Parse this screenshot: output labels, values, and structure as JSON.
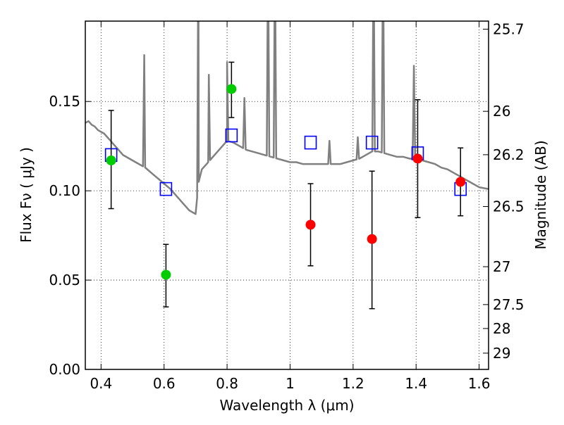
{
  "chart_data": {
    "type": "scatter",
    "xlabel": "Wavelength  λ (μm)",
    "ylabel": "Flux  Fν  ( μJy )",
    "y2label": "Magnitude (AB)",
    "xlim": [
      0.35,
      1.63
    ],
    "ylim": [
      0.0,
      0.195
    ],
    "grid": true,
    "x_ticks": [
      0.4,
      0.6,
      0.8,
      1.0,
      1.2,
      1.4,
      1.6
    ],
    "x_tick_labels": [
      "0.4",
      "0.6",
      "0.8",
      "1",
      "1.2",
      "1.4",
      "1.6"
    ],
    "y_ticks": [
      0.0,
      0.05,
      0.1,
      0.15
    ],
    "y_tick_labels": [
      "0.00",
      "0.05",
      "0.10",
      "0.15"
    ],
    "mag_ticks": [
      {
        "label": "25.7",
        "flux": 0.1905
      },
      {
        "label": "26",
        "flux": 0.1445
      },
      {
        "label": "26.2",
        "flux": 0.1202
      },
      {
        "label": "26.5",
        "flux": 0.0912
      },
      {
        "label": "27",
        "flux": 0.0575
      },
      {
        "label": "27.5",
        "flux": 0.0363
      },
      {
        "label": "28",
        "flux": 0.0229
      },
      {
        "label": "29",
        "flux": 0.0091
      }
    ],
    "model_spectrum": {
      "color": "#808080",
      "points": [
        [
          0.35,
          0.138
        ],
        [
          0.36,
          0.139
        ],
        [
          0.37,
          0.137
        ],
        [
          0.38,
          0.136
        ],
        [
          0.39,
          0.134
        ],
        [
          0.4,
          0.133
        ],
        [
          0.41,
          0.132
        ],
        [
          0.42,
          0.13
        ],
        [
          0.43,
          0.128
        ],
        [
          0.44,
          0.126
        ],
        [
          0.45,
          0.124
        ],
        [
          0.46,
          0.122
        ],
        [
          0.47,
          0.12
        ],
        [
          0.48,
          0.119
        ],
        [
          0.49,
          0.118
        ],
        [
          0.5,
          0.117
        ],
        [
          0.52,
          0.115
        ],
        [
          0.54,
          0.113
        ],
        [
          0.56,
          0.11
        ],
        [
          0.58,
          0.107
        ],
        [
          0.6,
          0.104
        ],
        [
          0.62,
          0.101
        ],
        [
          0.64,
          0.097
        ],
        [
          0.66,
          0.093
        ],
        [
          0.68,
          0.089
        ],
        [
          0.7,
          0.087
        ],
        [
          0.71,
          0.105
        ],
        [
          0.72,
          0.112
        ],
        [
          0.74,
          0.116
        ],
        [
          0.76,
          0.12
        ],
        [
          0.78,
          0.124
        ],
        [
          0.8,
          0.128
        ],
        [
          0.82,
          0.127
        ],
        [
          0.84,
          0.125
        ],
        [
          0.86,
          0.123
        ],
        [
          0.88,
          0.122
        ],
        [
          0.9,
          0.121
        ],
        [
          0.92,
          0.12
        ],
        [
          0.94,
          0.119
        ],
        [
          0.96,
          0.118
        ],
        [
          0.98,
          0.117
        ],
        [
          1.0,
          0.116
        ],
        [
          1.02,
          0.116
        ],
        [
          1.04,
          0.115
        ],
        [
          1.06,
          0.115
        ],
        [
          1.08,
          0.115
        ],
        [
          1.1,
          0.115
        ],
        [
          1.12,
          0.115
        ],
        [
          1.14,
          0.115
        ],
        [
          1.16,
          0.115
        ],
        [
          1.18,
          0.116
        ],
        [
          1.2,
          0.117
        ],
        [
          1.22,
          0.118
        ],
        [
          1.24,
          0.12
        ],
        [
          1.26,
          0.122
        ],
        [
          1.28,
          0.122
        ],
        [
          1.3,
          0.121
        ],
        [
          1.32,
          0.12
        ],
        [
          1.34,
          0.119
        ],
        [
          1.36,
          0.119
        ],
        [
          1.38,
          0.118
        ],
        [
          1.4,
          0.118
        ],
        [
          1.42,
          0.117
        ],
        [
          1.44,
          0.116
        ],
        [
          1.46,
          0.115
        ],
        [
          1.48,
          0.113
        ],
        [
          1.5,
          0.112
        ],
        [
          1.52,
          0.11
        ],
        [
          1.54,
          0.108
        ],
        [
          1.56,
          0.106
        ],
        [
          1.58,
          0.104
        ],
        [
          1.6,
          0.102
        ],
        [
          1.63,
          0.101
        ]
      ],
      "emission_lines": [
        [
          0.537,
          0.176
        ],
        [
          0.709,
          0.24
        ],
        [
          0.742,
          0.165
        ],
        [
          0.8,
          0.172
        ],
        [
          0.855,
          0.152
        ],
        [
          0.93,
          0.24
        ],
        [
          0.952,
          0.24
        ],
        [
          1.125,
          0.128
        ],
        [
          1.215,
          0.13
        ],
        [
          1.265,
          0.24
        ],
        [
          1.295,
          0.24
        ],
        [
          1.393,
          0.17
        ]
      ]
    },
    "series": [
      {
        "name": "",
        "marker": "square-open",
        "color": "#0000ff",
        "points": [
          {
            "x": 0.432,
            "y": 0.12
          },
          {
            "x": 0.606,
            "y": 0.101
          },
          {
            "x": 0.814,
            "y": 0.131
          },
          {
            "x": 1.065,
            "y": 0.127
          },
          {
            "x": 1.26,
            "y": 0.127
          },
          {
            "x": 1.405,
            "y": 0.121
          },
          {
            "x": 1.541,
            "y": 0.101
          }
        ]
      },
      {
        "name": "",
        "marker": "circle",
        "color": "#00cc00",
        "points": [
          {
            "x": 0.432,
            "y": 0.117,
            "err_low": 0.09,
            "err_high": 0.145
          },
          {
            "x": 0.606,
            "y": 0.053,
            "err_low": 0.035,
            "err_high": 0.07
          },
          {
            "x": 0.814,
            "y": 0.157,
            "err_low": 0.141,
            "err_high": 0.172
          }
        ]
      },
      {
        "name": "",
        "marker": "circle",
        "color": "#ff0000",
        "points": [
          {
            "x": 1.065,
            "y": 0.081,
            "err_low": 0.058,
            "err_high": 0.104
          },
          {
            "x": 1.26,
            "y": 0.073,
            "err_low": 0.034,
            "err_high": 0.111
          },
          {
            "x": 1.405,
            "y": 0.118,
            "err_low": 0.085,
            "err_high": 0.151
          },
          {
            "x": 1.541,
            "y": 0.105,
            "err_low": 0.086,
            "err_high": 0.124
          }
        ]
      }
    ]
  }
}
